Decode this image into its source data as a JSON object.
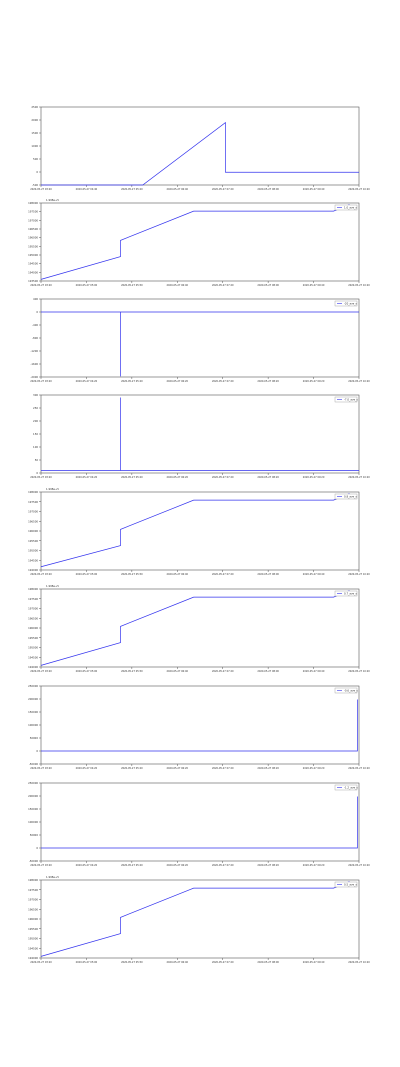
{
  "colors": {
    "line": "#3333ee",
    "axis": "#555555",
    "grid": "#cccccc",
    "text": "#333333"
  },
  "chart_data": [
    {
      "type": "line",
      "title": "",
      "yticks": [
        "2500",
        "2000",
        "1500",
        "1000",
        "500",
        "0",
        "-500"
      ],
      "xticks": [
        "2020-05-27 03:20",
        "2020-05-27 04:40",
        "2020-05-27 05:20",
        "2020-05-27 06:40",
        "2020-05-27 07:20",
        "2020-05-27 08:00",
        "2020-05-27 09:40",
        "2020-05-27 10:20"
      ],
      "ylim": [
        -500,
        2500
      ],
      "legend": [],
      "series": [
        {
          "values": [
            [
              0,
              -500
            ],
            [
              0.32,
              -500
            ],
            [
              0.58,
              1900
            ],
            [
              0.58,
              -10
            ],
            [
              1.0,
              -10
            ]
          ]
        }
      ]
    },
    {
      "type": "line",
      "title": "1.998e+5",
      "yticks": [
        "198000",
        "197500",
        "197000",
        "196500",
        "196000",
        "195500",
        "195000",
        "194500",
        "194000",
        "193500"
      ],
      "xticks": [
        "2020-05-27 03:20",
        "2020-05-27 05:00",
        "2020-05-27 05:50",
        "2020-05-27 06:40",
        "2020-05-27 07:20",
        "2020-05-27 08:00",
        "2020-05-27 09:40",
        "2020-05-27 10:20"
      ],
      "ylim": [
        193300,
        198100
      ],
      "legend": [
        "1.0_ave_s"
      ],
      "series": [
        {
          "values": [
            [
              0,
              193400
            ],
            [
              0.25,
              194800
            ],
            [
              0.25,
              195800
            ],
            [
              0.48,
              197600
            ],
            [
              0.92,
              197600
            ],
            [
              0.97,
              198000
            ]
          ]
        }
      ]
    },
    {
      "type": "line",
      "title": "",
      "yticks": [
        "400",
        "0",
        "-400",
        "-800",
        "-1200",
        "-1600",
        "-2000"
      ],
      "xticks": [
        "2020-05-27 03:20",
        "2020-05-27 04:20",
        "2020-05-27 05:20",
        "2020-05-27 06:20",
        "2020-05-27 07:20",
        "2020-05-27 08:20",
        "2020-05-27 09:20",
        "2020-05-27 10:20"
      ],
      "ylim": [
        -2000,
        400
      ],
      "legend": [
        "-20_ave_s"
      ],
      "series": [
        {
          "values": [
            [
              0,
              0
            ],
            [
              0.25,
              0
            ],
            [
              0.25,
              -1980
            ],
            [
              0.25,
              0
            ],
            [
              1.0,
              0
            ]
          ]
        }
      ]
    },
    {
      "type": "line",
      "title": "",
      "yticks": [
        "300",
        "250",
        "200",
        "150",
        "100",
        "50",
        "0"
      ],
      "xticks": [
        "2020-05-27 03:20",
        "2020-05-27 04:20",
        "2020-05-27 05:20",
        "2020-05-27 06:20",
        "2020-05-27 07:20",
        "2020-05-27 08:20",
        "2020-05-27 09:20",
        "2020-05-27 10:20"
      ],
      "ylim": [
        -10,
        300
      ],
      "legend": [
        "-7.0_ave_s"
      ],
      "series": [
        {
          "values": [
            [
              0,
              0
            ],
            [
              0.25,
              0
            ],
            [
              0.25,
              290
            ],
            [
              0.25,
              0
            ],
            [
              1.0,
              0
            ]
          ]
        }
      ]
    },
    {
      "type": "line",
      "title": "1.998e+5",
      "yticks": [
        "198000",
        "197500",
        "197000",
        "196500",
        "196000",
        "195500",
        "195000",
        "194500",
        "194000"
      ],
      "xticks": [
        "2020-05-27 03:20",
        "2020-05-27 05:00",
        "2020-05-27 05:50",
        "2020-05-27 06:40",
        "2020-05-27 07:20",
        "2020-05-27 08:00",
        "2020-05-27 09:40",
        "2020-05-27 10:20"
      ],
      "ylim": [
        193300,
        198100
      ],
      "legend": [
        "0.8_ave_s"
      ],
      "series": [
        {
          "values": [
            [
              0,
              193500
            ],
            [
              0.25,
              194800
            ],
            [
              0.25,
              195800
            ],
            [
              0.48,
              197600
            ],
            [
              0.92,
              197600
            ],
            [
              0.97,
              198000
            ]
          ]
        }
      ]
    },
    {
      "type": "line",
      "title": "1.998e+5",
      "yticks": [
        "198000",
        "197500",
        "197000",
        "196500",
        "196000",
        "195500",
        "195000",
        "194500",
        "194000"
      ],
      "xticks": [
        "2020-05-27 03:20",
        "2020-05-27 05:00",
        "2020-05-27 05:50",
        "2020-05-27 06:40",
        "2020-05-27 07:20",
        "2020-05-27 08:00",
        "2020-05-27 09:40",
        "2020-05-27 10:20"
      ],
      "ylim": [
        193300,
        198100
      ],
      "legend": [
        "0.7_ave_s"
      ],
      "series": [
        {
          "values": [
            [
              0,
              193400
            ],
            [
              0.25,
              194800
            ],
            [
              0.25,
              195800
            ],
            [
              0.48,
              197600
            ],
            [
              0.92,
              197600
            ],
            [
              0.97,
              198000
            ]
          ]
        }
      ]
    },
    {
      "type": "line",
      "title": "",
      "yticks": [
        "250000",
        "200000",
        "150000",
        "100000",
        "50000",
        "0",
        "-50000"
      ],
      "xticks": [
        "2020-05-27 03:20",
        "2020-05-27 04:20",
        "2020-05-27 05:20",
        "2020-05-27 06:20",
        "2020-05-27 07:20",
        "2020-05-27 08:20",
        "2020-05-27 09:20",
        "2020-05-27 10:20"
      ],
      "ylim": [
        -50000,
        250000
      ],
      "legend": [
        "-0.6_ave_s"
      ],
      "series": [
        {
          "values": [
            [
              0,
              0
            ],
            [
              0.995,
              0
            ],
            [
              0.995,
              198000
            ]
          ]
        }
      ]
    },
    {
      "type": "line",
      "title": "",
      "yticks": [
        "250000",
        "200000",
        "150000",
        "100000",
        "50000",
        "0",
        "-50000"
      ],
      "xticks": [
        "2020-05-27 03:20",
        "2020-05-27 04:20",
        "2020-05-27 05:20",
        "2020-05-27 06:20",
        "2020-05-27 07:20",
        "2020-05-27 08:20",
        "2020-05-27 09:20",
        "2020-05-27 10:20"
      ],
      "ylim": [
        -50000,
        250000
      ],
      "legend": [
        "-1.2_ave_s"
      ],
      "series": [
        {
          "values": [
            [
              0,
              0
            ],
            [
              0.995,
              0
            ],
            [
              0.995,
              198000
            ]
          ]
        }
      ]
    },
    {
      "type": "line",
      "title": "1.998e+5",
      "yticks": [
        "198000",
        "197500",
        "197000",
        "196500",
        "196000",
        "195500",
        "195000",
        "194500",
        "194000"
      ],
      "xticks": [
        "2020-05-27 03:20",
        "2020-05-27 05:00",
        "2020-05-27 05:50",
        "2020-05-27 06:40",
        "2020-05-27 07:20",
        "2020-05-27 08:00",
        "2020-05-27 09:40",
        "2020-05-27 10:20"
      ],
      "ylim": [
        193300,
        198100
      ],
      "legend": [
        "0.5_ave_s"
      ],
      "series": [
        {
          "values": [
            [
              0,
              193400
            ],
            [
              0.25,
              194800
            ],
            [
              0.25,
              195800
            ],
            [
              0.48,
              197600
            ],
            [
              0.92,
              197600
            ],
            [
              0.97,
              198000
            ]
          ]
        }
      ]
    }
  ]
}
